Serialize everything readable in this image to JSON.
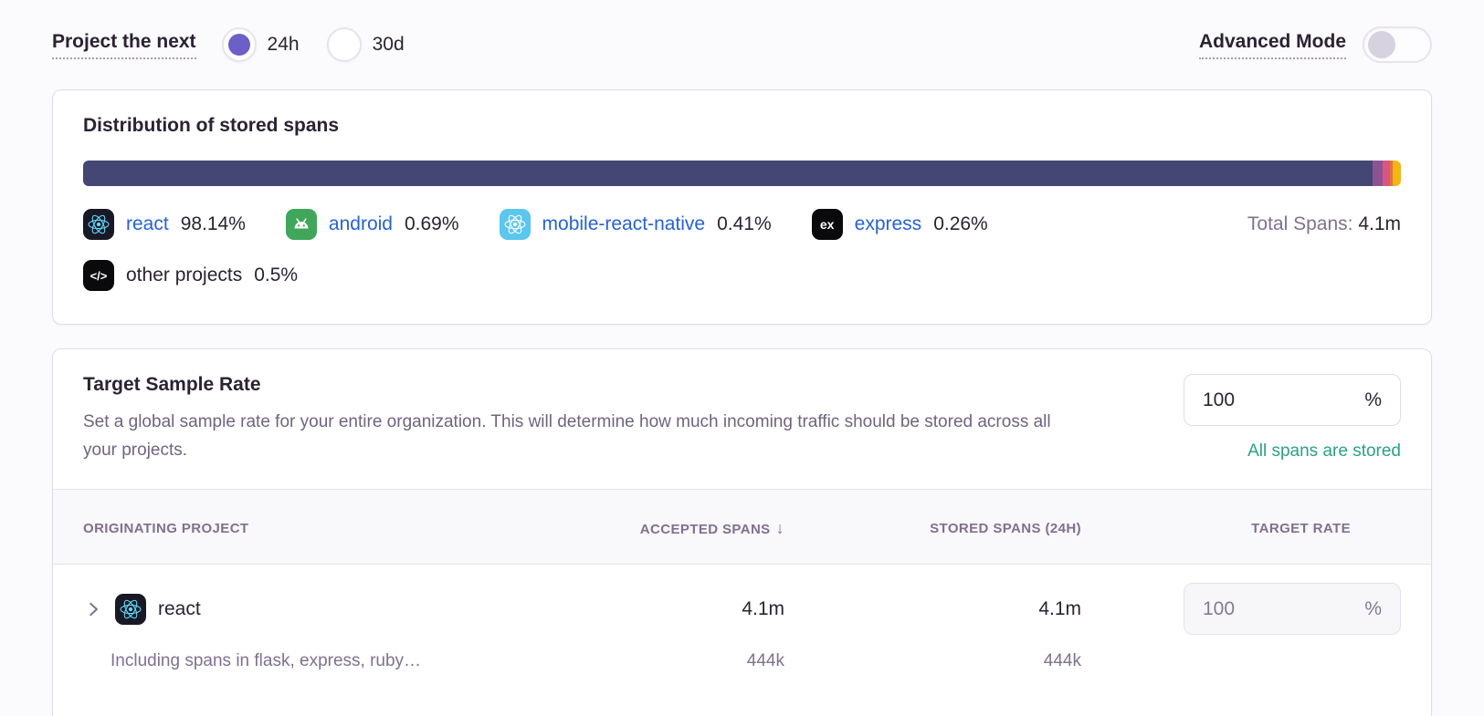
{
  "header": {
    "project_next_label": "Project the next",
    "period_options": [
      {
        "label": "24h",
        "selected": true
      },
      {
        "label": "30d",
        "selected": false
      }
    ],
    "advanced_mode_label": "Advanced Mode",
    "advanced_mode_on": false
  },
  "distribution_card": {
    "title": "Distribution of stored spans",
    "total_label": "Total Spans:",
    "total_value": "4.1m",
    "segments": [
      {
        "name": "react",
        "pct": 98.14,
        "color": "#444674",
        "display_width": 97.85
      },
      {
        "name": "android",
        "pct": 0.69,
        "color": "#8c5393",
        "display_width": 0.78
      },
      {
        "name": "mobile-react-native",
        "pct": 0.41,
        "color": "#da5581",
        "display_width": 0.55
      },
      {
        "name": "express",
        "pct": 0.26,
        "color": "#e8703c",
        "display_width": 0.2
      },
      {
        "name": "other projects",
        "pct": 0.5,
        "color": "#f2b712",
        "display_width": 0.62
      }
    ],
    "legend": [
      {
        "project": "react",
        "value": "98.14%"
      },
      {
        "project": "android",
        "value": "0.69%"
      },
      {
        "project": "mobile-react-native",
        "value": "0.41%"
      },
      {
        "project": "express",
        "value": "0.26%"
      },
      {
        "project": "other projects",
        "value": "0.5%"
      }
    ],
    "icon_texts": {
      "express": "ex",
      "other": "</>"
    }
  },
  "sample_rate_card": {
    "title": "Target Sample Rate",
    "description": "Set a global sample rate for your entire organization. This will determine how much incoming traffic should be stored across all your projects.",
    "rate_value": "100",
    "rate_unit": "%",
    "status": "All spans are stored",
    "table": {
      "headers": {
        "project": "ORIGINATING PROJECT",
        "accepted": "ACCEPTED SPANS",
        "sort_icon": "↓",
        "stored": "STORED SPANS (24H)",
        "target": "TARGET RATE"
      },
      "rows": [
        {
          "project": "react",
          "accepted": "4.1m",
          "stored": "4.1m",
          "rate": "100",
          "unit": "%",
          "sub_label": "Including spans in flask, express, ruby…",
          "sub_accepted": "444k",
          "sub_stored": "444k"
        }
      ]
    }
  },
  "colors": {
    "accent_purple": "#6c5fc7",
    "link_blue": "#2562d4",
    "success_green": "#2ba185",
    "bar_main": "#444674"
  }
}
